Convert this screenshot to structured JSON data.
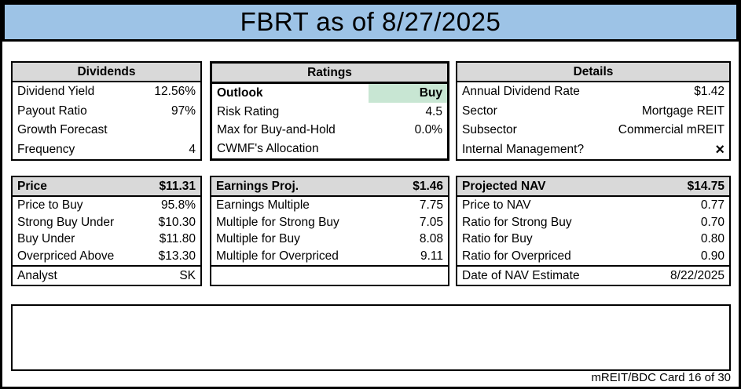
{
  "title": "FBRT as of 8/27/2025",
  "colors": {
    "title_bg": "#9DC3E6",
    "panel_header_bg": "#D9D9D9",
    "outlook_highlight": "#C8E6D3"
  },
  "panels": {
    "dividends": {
      "header": "Dividends",
      "rows": [
        {
          "label": "Dividend Yield",
          "value": "12.56%"
        },
        {
          "label": "Payout Ratio",
          "value": "97%"
        },
        {
          "label": "Growth Forecast",
          "value": ""
        },
        {
          "label": "Frequency",
          "value": "4"
        }
      ]
    },
    "ratings": {
      "header": "Ratings",
      "rows": [
        {
          "label": "Outlook",
          "value": "Buy"
        },
        {
          "label": "Risk Rating",
          "value": "4.5"
        },
        {
          "label": "Max for Buy-and-Hold",
          "value": "0.0%"
        },
        {
          "label": "CWMF's Allocation",
          "value": ""
        }
      ]
    },
    "details": {
      "header": "Details",
      "rows": [
        {
          "label": "Annual Dividend Rate",
          "value": "$1.42"
        },
        {
          "label": "Sector",
          "value": "Mortgage REIT"
        },
        {
          "label": "Subsector",
          "value": "Commercial mREIT"
        },
        {
          "label": "Internal Management?",
          "value": "×"
        }
      ]
    },
    "price": {
      "header_label": "Price",
      "header_value": "$11.31",
      "rows": [
        {
          "label": "Price to Buy",
          "value": "95.8%"
        },
        {
          "label": "Strong Buy Under",
          "value": "$10.30"
        },
        {
          "label": "Buy Under",
          "value": "$11.80"
        },
        {
          "label": "Overpriced Above",
          "value": "$13.30"
        }
      ],
      "footer": {
        "label": "Analyst",
        "value": "SK"
      }
    },
    "earnings_proj": {
      "header_label": "Earnings Proj.",
      "header_value": "$1.46",
      "rows": [
        {
          "label": "Earnings Multiple",
          "value": "7.75"
        },
        {
          "label": "Multiple for Strong Buy",
          "value": "7.05"
        },
        {
          "label": "Multiple for Buy",
          "value": "8.08"
        },
        {
          "label": "Multiple for Overpriced",
          "value": "9.11"
        }
      ],
      "footer": {
        "label": "",
        "value": ""
      }
    },
    "projected_nav": {
      "header_label": "Projected NAV",
      "header_value": "$14.75",
      "rows": [
        {
          "label": "Price to NAV",
          "value": "0.77"
        },
        {
          "label": "Ratio for Strong Buy",
          "value": "0.70"
        },
        {
          "label": "Ratio for Buy",
          "value": "0.80"
        },
        {
          "label": "Ratio for Overpriced",
          "value": "0.90"
        }
      ],
      "footer": {
        "label": "Date of NAV Estimate",
        "value": "8/22/2025"
      }
    }
  },
  "notes": "",
  "footer_text": "mREIT/BDC Card 16 of 30"
}
